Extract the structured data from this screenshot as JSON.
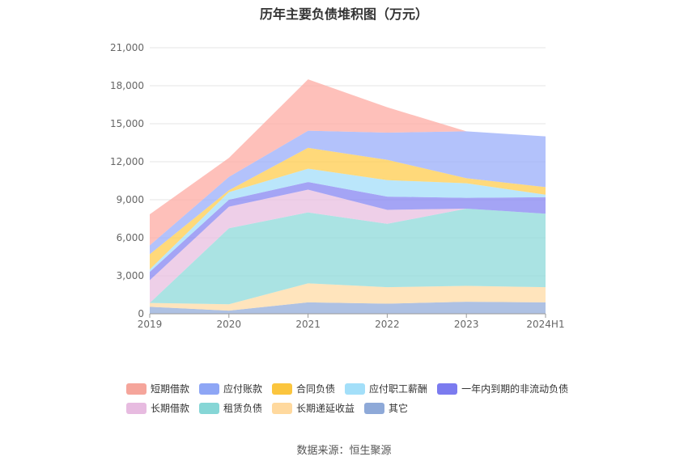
{
  "chart_data": {
    "type": "area",
    "stacked": true,
    "title": "历年主要负债堆积图（万元）",
    "categories": [
      "2019",
      "2020",
      "2021",
      "2022",
      "2023",
      "2024H1"
    ],
    "ylim": [
      0,
      21000
    ],
    "yticks": [
      "0",
      "3,000",
      "6,000",
      "9,000",
      "12,000",
      "15,000",
      "18,000",
      "21,000"
    ],
    "ytick_values": [
      0,
      3000,
      6000,
      9000,
      12000,
      15000,
      18000,
      21000
    ],
    "grid": true,
    "legend_position": "bottom",
    "series": [
      {
        "name": "其它",
        "color": "#93acd9",
        "values": [
          550,
          250,
          900,
          800,
          950,
          900
        ]
      },
      {
        "name": "长期递延收益",
        "color": "#ffdba6",
        "values": [
          300,
          500,
          1500,
          1300,
          1250,
          1200
        ]
      },
      {
        "name": "租赁负债",
        "color": "#8dd9d9",
        "values": [
          0,
          6000,
          5600,
          5000,
          6100,
          5800
        ]
      },
      {
        "name": "长期借款",
        "color": "#e8bfe0",
        "values": [
          1800,
          1700,
          1800,
          1100,
          0,
          0
        ]
      },
      {
        "name": "一年内到期的非流动负债",
        "color": "#8585f2",
        "values": [
          650,
          550,
          600,
          1050,
          850,
          1300
        ]
      },
      {
        "name": "应付职工薪酬",
        "color": "#a3defa",
        "values": [
          200,
          600,
          1050,
          1300,
          1150,
          200
        ]
      },
      {
        "name": "合同负债",
        "color": "#ffcc4d",
        "values": [
          1200,
          150,
          1650,
          1600,
          400,
          600
        ]
      },
      {
        "name": "应付账款",
        "color": "#99adf9",
        "values": [
          700,
          1050,
          1350,
          2150,
          3700,
          4000
        ]
      },
      {
        "name": "短期借款",
        "color": "#fdaba3",
        "values": [
          2450,
          1500,
          4050,
          2000,
          0,
          0
        ]
      }
    ]
  },
  "legend": [
    [
      {
        "name": "短期借款",
        "color": "#f5a59b"
      },
      {
        "name": "应付账款",
        "color": "#8ea6f5"
      },
      {
        "name": "合同负债",
        "color": "#fbc53e"
      },
      {
        "name": "应付职工薪酬",
        "color": "#a3dff9"
      },
      {
        "name": "一年内到期的非流动负债",
        "color": "#7b7bef"
      }
    ],
    [
      {
        "name": "长期借款",
        "color": "#e7bbe0"
      },
      {
        "name": "租赁负债",
        "color": "#86d6d6"
      },
      {
        "name": "长期递延收益",
        "color": "#ffd99e"
      },
      {
        "name": "其它",
        "color": "#8ea9d8"
      }
    ]
  ],
  "source": "数据来源：恒生聚源"
}
